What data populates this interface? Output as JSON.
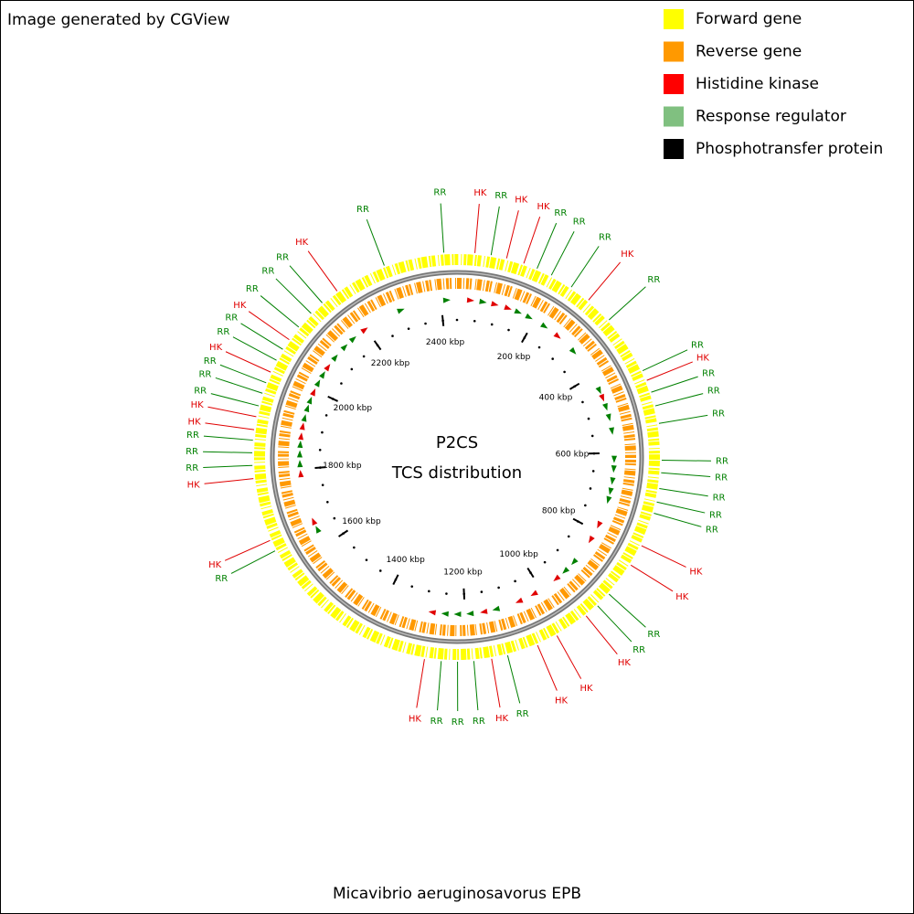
{
  "header": {
    "title": "Image generated by CGView"
  },
  "legend": [
    {
      "label": "Forward gene",
      "color": "#ffff00"
    },
    {
      "label": "Reverse gene",
      "color": "#ff9900"
    },
    {
      "label": "Histidine kinase",
      "color": "#ff0000"
    },
    {
      "label": "Response regulator",
      "color": "#80c080"
    },
    {
      "label": "Phosphotransfer protein",
      "color": "#000000"
    }
  ],
  "center": {
    "line1": "P2CS",
    "line2": "TCS distribution"
  },
  "footer": {
    "organism": "Micavibrio aeruginosavorus EPB"
  },
  "map": {
    "genome_length": 2440,
    "minor_step": 50,
    "ruler": [
      {
        "value": 200,
        "label": "200 kbp"
      },
      {
        "value": 400,
        "label": "400 kbp"
      },
      {
        "value": 600,
        "label": "600 kbp"
      },
      {
        "value": 800,
        "label": "800 kbp"
      },
      {
        "value": 1000,
        "label": "1000 kbp"
      },
      {
        "value": 1200,
        "label": "1200 kbp"
      },
      {
        "value": 1400,
        "label": "1400 kbp"
      },
      {
        "value": 1600,
        "label": "1600 kbp"
      },
      {
        "value": 1800,
        "label": "1800 kbp"
      },
      {
        "value": 2000,
        "label": "2000 kbp"
      },
      {
        "value": 2200,
        "label": "2200 kbp"
      },
      {
        "value": 2400,
        "label": "2400 kbp"
      }
    ],
    "features": [
      {
        "label": "RR",
        "position": 2415,
        "color": "#008000"
      },
      {
        "label": "HK",
        "position": 34,
        "color": "#e00000"
      },
      {
        "label": "RR",
        "position": 65,
        "color": "#008000"
      },
      {
        "label": "HK",
        "position": 95,
        "color": "#e00000"
      },
      {
        "label": "HK",
        "position": 129,
        "color": "#e00000"
      },
      {
        "label": "RR",
        "position": 156,
        "color": "#008000"
      },
      {
        "label": "RR",
        "position": 186,
        "color": "#008000"
      },
      {
        "label": "RR",
        "position": 230,
        "color": "#008000"
      },
      {
        "label": "HK",
        "position": 271,
        "color": "#e00000"
      },
      {
        "label": "RR",
        "position": 325,
        "color": "#008000"
      },
      {
        "label": "RR",
        "position": 441,
        "color": "#008000"
      },
      {
        "label": "HK",
        "position": 461,
        "color": "#e00000"
      },
      {
        "label": "RR",
        "position": 485,
        "color": "#008000"
      },
      {
        "label": "RR",
        "position": 512,
        "color": "#008000"
      },
      {
        "label": "RR",
        "position": 546,
        "color": "#008000"
      },
      {
        "label": "RR",
        "position": 616,
        "color": "#008000"
      },
      {
        "label": "RR",
        "position": 640,
        "color": "#008000"
      },
      {
        "label": "RR",
        "position": 670,
        "color": "#008000"
      },
      {
        "label": "RR",
        "position": 696,
        "color": "#008000"
      },
      {
        "label": "RR",
        "position": 718,
        "color": "#008000"
      },
      {
        "label": "HK",
        "position": 784,
        "color": "#e00000"
      },
      {
        "label": "HK",
        "position": 826,
        "color": "#e00000"
      },
      {
        "label": "RR",
        "position": 895,
        "color": "#008000"
      },
      {
        "label": "RR",
        "position": 926,
        "color": "#008000"
      },
      {
        "label": "HK",
        "position": 955,
        "color": "#e00000"
      },
      {
        "label": "HK",
        "position": 1022,
        "color": "#e00000"
      },
      {
        "label": "HK",
        "position": 1063,
        "color": "#e00000"
      },
      {
        "label": "RR",
        "position": 1123,
        "color": "#008000"
      },
      {
        "label": "HK",
        "position": 1154,
        "color": "#e00000"
      },
      {
        "label": "RR",
        "position": 1188,
        "color": "#008000"
      },
      {
        "label": "RR",
        "position": 1219,
        "color": "#008000"
      },
      {
        "label": "RR",
        "position": 1250,
        "color": "#008000"
      },
      {
        "label": "HK",
        "position": 1282,
        "color": "#e00000"
      },
      {
        "label": "RR",
        "position": 1645,
        "color": "#008000"
      },
      {
        "label": "HK",
        "position": 1667,
        "color": "#e00000"
      },
      {
        "label": "HK",
        "position": 1789,
        "color": "#e00000"
      },
      {
        "label": "RR",
        "position": 1814,
        "color": "#008000"
      },
      {
        "label": "RR",
        "position": 1838,
        "color": "#008000"
      },
      {
        "label": "RR",
        "position": 1862,
        "color": "#008000"
      },
      {
        "label": "HK",
        "position": 1882,
        "color": "#e00000"
      },
      {
        "label": "HK",
        "position": 1907,
        "color": "#e00000"
      },
      {
        "label": "RR",
        "position": 1928,
        "color": "#008000"
      },
      {
        "label": "RR",
        "position": 1953,
        "color": "#008000"
      },
      {
        "label": "RR",
        "position": 1974,
        "color": "#008000"
      },
      {
        "label": "HK",
        "position": 1996,
        "color": "#e00000"
      },
      {
        "label": "RR",
        "position": 2021,
        "color": "#008000"
      },
      {
        "label": "RR",
        "position": 2045,
        "color": "#008000"
      },
      {
        "label": "HK",
        "position": 2067,
        "color": "#e00000"
      },
      {
        "label": "RR",
        "position": 2097,
        "color": "#008000"
      },
      {
        "label": "RR",
        "position": 2132,
        "color": "#008000"
      },
      {
        "label": "RR",
        "position": 2161,
        "color": "#008000"
      },
      {
        "label": "HK",
        "position": 2197,
        "color": "#e00000"
      },
      {
        "label": "RR",
        "position": 2299,
        "color": "#008000"
      }
    ]
  }
}
